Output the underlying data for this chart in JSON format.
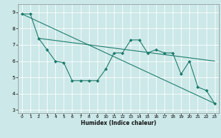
{
  "title": "",
  "xlabel": "Humidex (Indice chaleur)",
  "bg_color": "#cce8e8",
  "grid_color": "#ffffff",
  "line_color": "#1a7a6a",
  "xlim": [
    -0.5,
    23.5
  ],
  "ylim": [
    2.8,
    9.5
  ],
  "xticks": [
    0,
    1,
    2,
    3,
    4,
    5,
    6,
    7,
    8,
    9,
    10,
    11,
    12,
    13,
    14,
    15,
    16,
    17,
    18,
    19,
    20,
    21,
    22,
    23
  ],
  "yticks": [
    3,
    4,
    5,
    6,
    7,
    8,
    9
  ],
  "series_zigzag": {
    "x": [
      0,
      1,
      2,
      3,
      4,
      5,
      6,
      7,
      8,
      9,
      10,
      11,
      12,
      13,
      14,
      15,
      16,
      17,
      18,
      19,
      20,
      21,
      22,
      23
    ],
    "y": [
      8.9,
      8.9,
      7.4,
      6.7,
      6.0,
      5.9,
      4.8,
      4.8,
      4.8,
      4.8,
      5.5,
      6.5,
      6.5,
      7.3,
      7.3,
      6.5,
      6.7,
      6.5,
      6.5,
      5.2,
      6.0,
      4.4,
      4.2,
      3.4
    ]
  },
  "series_diagonal": {
    "x": [
      0,
      23
    ],
    "y": [
      8.9,
      3.4
    ]
  },
  "series_upper_flat": {
    "x": [
      2,
      23
    ],
    "y": [
      7.4,
      6.0
    ]
  }
}
